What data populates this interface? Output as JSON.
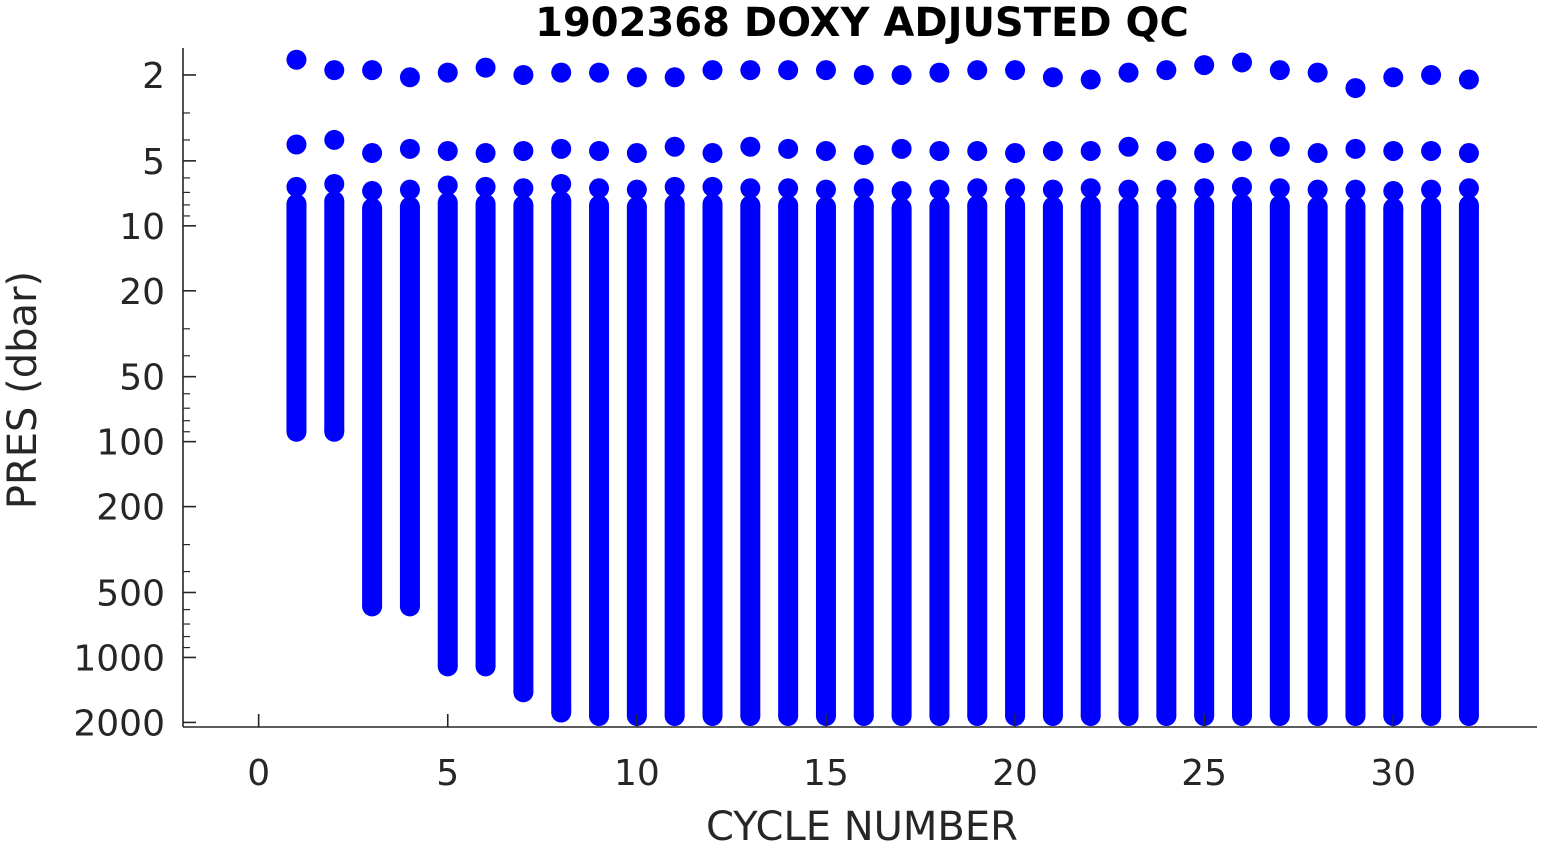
{
  "chart_data": {
    "type": "scatter",
    "title": "1902368  DOXY ADJUSTED QC",
    "xlabel": "CYCLE NUMBER",
    "ylabel": "PRES (dbar)",
    "xlim": [
      -2,
      33.8
    ],
    "ylim": [
      1.5,
      2100
    ],
    "yscale": "log",
    "yreverse": true,
    "x_ticks": [
      0,
      5,
      10,
      15,
      20,
      25,
      30
    ],
    "x_tick_labels": [
      "0",
      "5",
      "10",
      "15",
      "20",
      "25",
      "30"
    ],
    "y_ticks": [
      2,
      5,
      10,
      20,
      50,
      100,
      200,
      500,
      1000,
      2000
    ],
    "y_tick_labels": [
      "2",
      "5",
      "10",
      "20",
      "50",
      "100",
      "200",
      "500",
      "1000",
      "2000"
    ],
    "grid": false,
    "marker_color": "#0000ff",
    "series": [
      {
        "cycles": [
          1,
          2,
          3,
          4,
          5,
          6,
          7,
          8,
          9,
          10,
          11,
          12,
          13,
          14,
          15,
          16,
          17,
          18,
          19,
          20,
          21,
          22,
          23,
          24,
          25,
          26,
          27,
          28,
          29,
          30,
          31,
          32
        ],
        "surface_pres": [
          1.7,
          1.9,
          1.9,
          2.05,
          1.95,
          1.85,
          2.0,
          1.95,
          1.95,
          2.05,
          2.05,
          1.9,
          1.9,
          1.9,
          1.9,
          2.0,
          2.0,
          1.95,
          1.9,
          1.9,
          2.05,
          2.1,
          1.95,
          1.9,
          1.8,
          1.75,
          1.9,
          1.95,
          2.3,
          2.05,
          2.0,
          2.1
        ],
        "second_pres": [
          4.2,
          4.0,
          4.6,
          4.4,
          4.5,
          4.6,
          4.5,
          4.4,
          4.5,
          4.6,
          4.3,
          4.6,
          4.3,
          4.4,
          4.5,
          4.7,
          4.4,
          4.5,
          4.5,
          4.6,
          4.5,
          4.5,
          4.3,
          4.5,
          4.6,
          4.5,
          4.3,
          4.6,
          4.4,
          4.5,
          4.5,
          4.6
        ],
        "third_pres": [
          6.6,
          6.4,
          6.9,
          6.8,
          6.5,
          6.6,
          6.7,
          6.4,
          6.7,
          6.8,
          6.6,
          6.6,
          6.7,
          6.7,
          6.8,
          6.7,
          6.9,
          6.8,
          6.7,
          6.7,
          6.8,
          6.7,
          6.8,
          6.8,
          6.7,
          6.6,
          6.7,
          6.8,
          6.8,
          6.9,
          6.8,
          6.7
        ],
        "max_pres": [
          90,
          90,
          580,
          580,
          1100,
          1100,
          1450,
          1800,
          1950,
          2050,
          2050,
          2050,
          2050,
          2050,
          2050,
          2050,
          2050,
          2050,
          2050,
          2050,
          2050,
          2050,
          2050,
          2050,
          2050,
          2050,
          2050,
          2050,
          2050,
          2050,
          2050,
          2050
        ]
      }
    ]
  }
}
